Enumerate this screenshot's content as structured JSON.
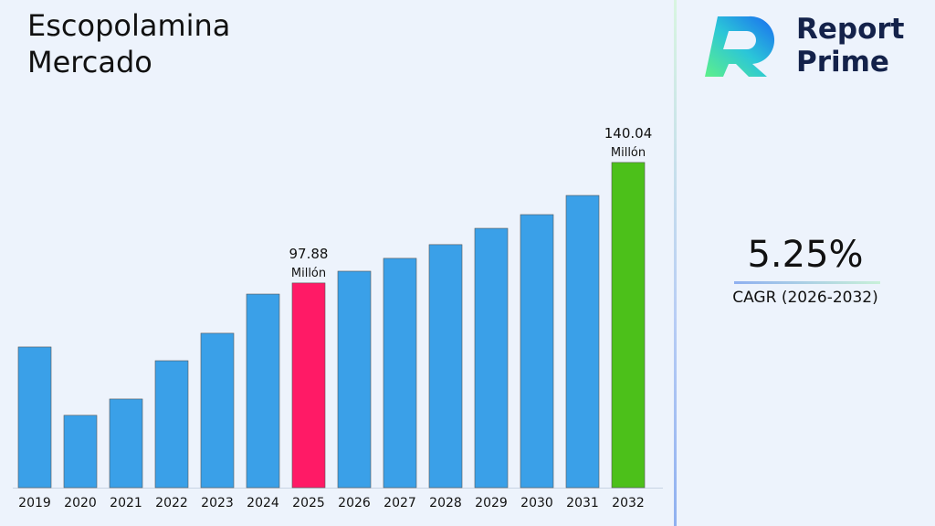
{
  "title": "Escopolamina\nMercado",
  "brand": {
    "line1": "Report",
    "line2": "Prime"
  },
  "cagr": {
    "value": "5.25%",
    "label": "CAGR (2026-2032)"
  },
  "colors": {
    "default": "#3aa0e8",
    "highlight_2025": "#ff1a66",
    "highlight_2032": "#4cc01a"
  },
  "chart_data": {
    "type": "bar",
    "categories": [
      "2019",
      "2020",
      "2021",
      "2022",
      "2023",
      "2024",
      "2025",
      "2026",
      "2027",
      "2028",
      "2029",
      "2030",
      "2031",
      "2032"
    ],
    "values": [
      75.5,
      51.6,
      57.3,
      70.7,
      80.3,
      94.0,
      97.88,
      102.0,
      106.5,
      111.3,
      117.0,
      121.8,
      128.5,
      140.04
    ],
    "data_labels": {
      "6": [
        "97.88",
        "Millón"
      ],
      "13": [
        "140.04",
        "Millón"
      ]
    },
    "ylim": [
      26.3,
      150
    ],
    "grid": false,
    "xlabel": "",
    "ylabel": ""
  }
}
